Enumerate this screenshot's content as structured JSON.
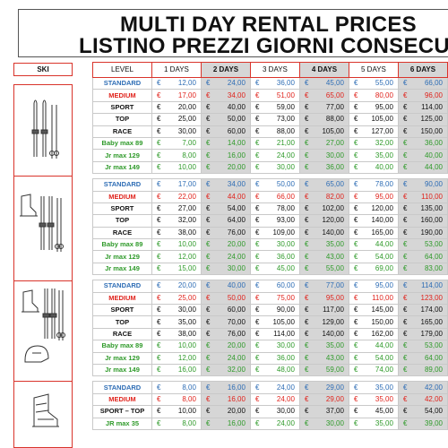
{
  "title": {
    "line1": "MULTI DAY  RENTAL PRICES",
    "line2": "LISTINO PREZZI  GIORNI CONSECUTIVI"
  },
  "ski_header": "SKI",
  "table": {
    "level_header": "LEVEL",
    "day_headers": [
      "1 DAYS",
      "2 DAYS",
      "3 DAYS",
      "4 DAYS",
      "5 DAYS",
      "6 DAYS"
    ],
    "currency": "€",
    "colors": {
      "blue": "#2e6db5",
      "red": "#e0231c",
      "black": "#111111",
      "green": "#2f9a2a"
    },
    "groups": [
      {
        "icon": "skis-poles-icon",
        "rows": [
          {
            "level": "STANDARD",
            "color": "blue",
            "prices": [
              "12,00",
              "24,00",
              "36,00",
              "45,00",
              "55,00",
              "66,00"
            ]
          },
          {
            "level": "MEDIUM",
            "color": "red",
            "prices": [
              "17,00",
              "34,00",
              "51,00",
              "65,00",
              "80,00",
              "96,00"
            ]
          },
          {
            "level": "SPORT",
            "color": "black",
            "prices": [
              "20,00",
              "40,00",
              "59,00",
              "77,00",
              "95,00",
              "114,00"
            ]
          },
          {
            "level": "TOP",
            "color": "black",
            "prices": [
              "25,00",
              "50,00",
              "73,00",
              "88,00",
              "105,00",
              "125,00"
            ]
          },
          {
            "level": "RACE",
            "color": "black",
            "prices": [
              "30,00",
              "60,00",
              "88,00",
              "105,00",
              "127,00",
              "150,00"
            ]
          },
          {
            "level": "Baby max 89",
            "color": "green",
            "prices": [
              "7,00",
              "14,00",
              "21,00",
              "27,00",
              "32,00",
              "36,00"
            ]
          },
          {
            "level": "Jr max 129",
            "color": "green",
            "prices": [
              "8,00",
              "16,00",
              "24,00",
              "30,00",
              "35,00",
              "40,00"
            ]
          },
          {
            "level": "Jr max 149",
            "color": "green",
            "prices": [
              "10,00",
              "20,00",
              "30,00",
              "36,00",
              "40,00",
              "44,00"
            ]
          }
        ]
      },
      {
        "icon": "boot-skis-icon",
        "rows": [
          {
            "level": "STANDARD",
            "color": "blue",
            "prices": [
              "17,00",
              "34,00",
              "50,00",
              "65,00",
              "78,00",
              "90,00"
            ]
          },
          {
            "level": "MEDIUM",
            "color": "red",
            "prices": [
              "22,00",
              "44,00",
              "66,00",
              "82,00",
              "95,00",
              "110,00"
            ]
          },
          {
            "level": "SPORT",
            "color": "black",
            "prices": [
              "27,00",
              "54,00",
              "78,00",
              "102,00",
              "120,00",
              "135,00"
            ]
          },
          {
            "level": "TOP",
            "color": "black",
            "prices": [
              "32,00",
              "64,00",
              "93,00",
              "120,00",
              "140,00",
              "160,00"
            ]
          },
          {
            "level": "RACE",
            "color": "black",
            "prices": [
              "38,00",
              "76,00",
              "109,00",
              "140,00",
              "165,00",
              "190,00"
            ]
          },
          {
            "level": "Baby max 89",
            "color": "green",
            "prices": [
              "10,00",
              "20,00",
              "30,00",
              "35,00",
              "44,00",
              "53,00"
            ]
          },
          {
            "level": "Jr max 129",
            "color": "green",
            "prices": [
              "12,00",
              "24,00",
              "36,00",
              "43,00",
              "54,00",
              "64,00"
            ]
          },
          {
            "level": "Jr max 149",
            "color": "green",
            "prices": [
              "15,00",
              "30,00",
              "45,00",
              "55,00",
              "69,00",
              "83,00"
            ]
          }
        ]
      },
      {
        "icon": "boot-skis-helmet-icon",
        "rows": [
          {
            "level": "STANDARD",
            "color": "blue",
            "prices": [
              "20,00",
              "40,00",
              "60,00",
              "77,00",
              "95,00",
              "114,00"
            ]
          },
          {
            "level": "MEDIUM",
            "color": "red",
            "prices": [
              "25,00",
              "50,00",
              "75,00",
              "95,00",
              "110,00",
              "123,00"
            ]
          },
          {
            "level": "SPORT",
            "color": "black",
            "prices": [
              "30,00",
              "60,00",
              "90,00",
              "117,00",
              "145,00",
              "174,00"
            ]
          },
          {
            "level": "TOP",
            "color": "black",
            "prices": [
              "35,00",
              "70,00",
              "105,00",
              "129,00",
              "150,00",
              "165,00"
            ]
          },
          {
            "level": "RACE",
            "color": "black",
            "prices": [
              "38,00",
              "76,00",
              "114,00",
              "140,00",
              "162,00",
              "179,00"
            ]
          },
          {
            "level": "Baby max 89",
            "color": "green",
            "prices": [
              "10,00",
              "20,00",
              "30,00",
              "35,00",
              "44,00",
              "53,00"
            ]
          },
          {
            "level": "Jr max 129",
            "color": "green",
            "prices": [
              "12,00",
              "24,00",
              "36,00",
              "43,00",
              "54,00",
              "64,00"
            ]
          },
          {
            "level": "Jr max 149",
            "color": "green",
            "prices": [
              "16,00",
              "32,00",
              "48,00",
              "59,00",
              "74,00",
              "89,00"
            ]
          }
        ]
      },
      {
        "icon": "ski-boot-icon",
        "rows": [
          {
            "level": "STANDARD",
            "color": "blue",
            "prices": [
              "8,00",
              "16,00",
              "24,00",
              "29,00",
              "35,00",
              "42,00"
            ]
          },
          {
            "level": "MEDIUM",
            "color": "red",
            "prices": [
              "8,00",
              "16,00",
              "24,00",
              "29,00",
              "35,00",
              "42,00"
            ]
          },
          {
            "level": "SPORT – TOP",
            "color": "black",
            "prices": [
              "10,00",
              "20,00",
              "30,00",
              "37,00",
              "45,00",
              "54,00"
            ]
          },
          {
            "level": "JR max 35",
            "color": "green",
            "prices": [
              "8,00",
              "16,00",
              "24,00",
              "30,00",
              "35,00",
              "39,00"
            ]
          }
        ]
      }
    ]
  }
}
